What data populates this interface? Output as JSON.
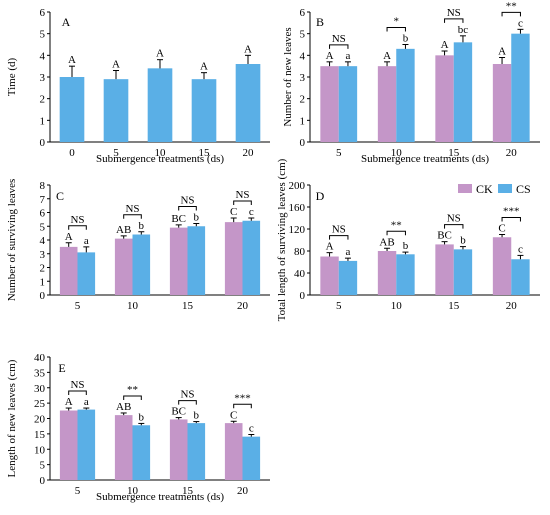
{
  "legend": {
    "entries": [
      "CK",
      "CS"
    ]
  },
  "colors": {
    "ck": "#c496c8",
    "cs": "#5aafe6",
    "axis": "#000000"
  },
  "chart_data": [
    {
      "panel": "A",
      "type": "bar",
      "categories": [
        "0",
        "5",
        "10",
        "15",
        "20"
      ],
      "xlabel": "Submergence treatments (ds)",
      "ylabel": "Time (d)",
      "ylim": [
        0,
        6
      ],
      "yticks": [
        0,
        1,
        2,
        3,
        4,
        5,
        6
      ],
      "series": [
        {
          "values": [
            3.0,
            2.9,
            3.4,
            2.9,
            3.6
          ],
          "err": [
            0.5,
            0.4,
            0.4,
            0.3,
            0.4
          ],
          "labels": [
            "A",
            "A",
            "A",
            "A",
            "A"
          ]
        }
      ],
      "sig": []
    },
    {
      "panel": "B",
      "type": "bar",
      "categories": [
        "5",
        "10",
        "15",
        "20"
      ],
      "xlabel": "Submergence treatments (ds)",
      "ylabel": "Number of new leaves",
      "ylim": [
        0,
        6
      ],
      "yticks": [
        0,
        1,
        2,
        3,
        4,
        5,
        6
      ],
      "series": [
        {
          "name": "CK",
          "values": [
            3.5,
            3.5,
            4.0,
            3.6
          ],
          "err": [
            0.2,
            0.2,
            0.2,
            0.3
          ],
          "labels": [
            "A",
            "A",
            "A",
            "A"
          ]
        },
        {
          "name": "CS",
          "values": [
            3.5,
            4.3,
            4.6,
            5.0
          ],
          "err": [
            0.2,
            0.2,
            0.3,
            0.2
          ],
          "labels": [
            "a",
            "b",
            "bc",
            "c"
          ]
        }
      ],
      "sig": [
        "NS",
        "*",
        "NS",
        "**"
      ]
    },
    {
      "panel": "C",
      "type": "bar",
      "categories": [
        "5",
        "10",
        "15",
        "20"
      ],
      "xlabel": "",
      "ylabel": "Number of  surviving leaves",
      "ylim": [
        0,
        8
      ],
      "yticks": [
        0,
        1,
        2,
        3,
        4,
        5,
        6,
        7,
        8
      ],
      "series": [
        {
          "name": "CK",
          "values": [
            3.5,
            4.1,
            4.9,
            5.3
          ],
          "err": [
            0.3,
            0.2,
            0.2,
            0.3
          ],
          "labels": [
            "A",
            "AB",
            "BC",
            "C"
          ]
        },
        {
          "name": "CS",
          "values": [
            3.1,
            4.4,
            5.0,
            5.4
          ],
          "err": [
            0.4,
            0.2,
            0.2,
            0.2
          ],
          "labels": [
            "a",
            "b",
            "b",
            "c"
          ]
        }
      ],
      "sig": [
        "NS",
        "NS",
        "NS",
        "NS"
      ]
    },
    {
      "panel": "D",
      "type": "bar",
      "categories": [
        "5",
        "10",
        "15",
        "20"
      ],
      "xlabel": "",
      "ylabel": "Total length of surviving leaves (cm)",
      "ylim": [
        0,
        200
      ],
      "yticks": [
        0,
        40,
        80,
        120,
        160,
        200
      ],
      "series": [
        {
          "name": "CK",
          "values": [
            70,
            80,
            92,
            105
          ],
          "err": [
            7,
            5,
            5,
            5
          ],
          "labels": [
            "A",
            "AB",
            "BC",
            "C"
          ]
        },
        {
          "name": "CS",
          "values": [
            62,
            74,
            83,
            65
          ],
          "err": [
            5,
            4,
            5,
            7
          ],
          "labels": [
            "a",
            "b",
            "b",
            "c"
          ]
        }
      ],
      "sig": [
        "NS",
        "**",
        "NS",
        "***"
      ]
    },
    {
      "panel": "E",
      "type": "bar",
      "categories": [
        "5",
        "10",
        "15",
        "20"
      ],
      "xlabel": "Submergence treatments (ds)",
      "ylabel": "Length of new leaves (cm)",
      "ylim": [
        0,
        40
      ],
      "yticks": [
        0,
        5,
        10,
        15,
        20,
        25,
        30,
        35,
        40
      ],
      "series": [
        {
          "name": "CK",
          "values": [
            22.6,
            21.1,
            19.7,
            18.5
          ],
          "err": [
            0.8,
            0.7,
            0.6,
            0.6
          ],
          "labels": [
            "A",
            "AB",
            "BC",
            "C"
          ]
        },
        {
          "name": "CS",
          "values": [
            22.9,
            17.8,
            18.5,
            14.1
          ],
          "err": [
            0.5,
            0.6,
            0.5,
            0.7
          ],
          "labels": [
            "a",
            "b",
            "b",
            "c"
          ]
        }
      ],
      "sig": [
        "NS",
        "**",
        "NS",
        "***"
      ]
    }
  ]
}
